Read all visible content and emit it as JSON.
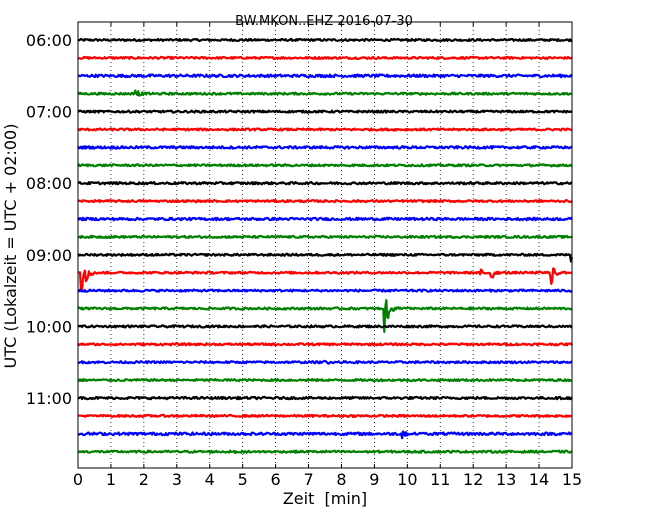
{
  "chart_data": {
    "type": "line",
    "title": "BW.MKON..EHZ 2016-07-30",
    "xlabel": "Zeit  [min]",
    "ylabel": "UTC (Lokalzeit = UTC + 02:00)",
    "xlim": [
      0,
      15
    ],
    "x_ticks": [
      "0",
      "1",
      "2",
      "3",
      "4",
      "5",
      "6",
      "7",
      "8",
      "9",
      "10",
      "11",
      "12",
      "13",
      "14",
      "15"
    ],
    "y_ticks": [
      "06:00",
      "07:00",
      "08:00",
      "09:00",
      "10:00",
      "11:00"
    ],
    "grid": "vertical dotted",
    "trace_colors": [
      "#000000",
      "#ff0000",
      "#0000ff",
      "#008000"
    ],
    "traces": [
      {
        "start": "06:00",
        "noise": 1.0,
        "events": []
      },
      {
        "start": "06:15",
        "noise": 1.0,
        "events": []
      },
      {
        "start": "06:30",
        "noise": 1.3,
        "events": []
      },
      {
        "start": "06:45",
        "noise": 1.0,
        "events": [
          {
            "t": 1.7,
            "amp": 6
          }
        ]
      },
      {
        "start": "07:00",
        "noise": 1.0,
        "events": []
      },
      {
        "start": "07:15",
        "noise": 1.0,
        "events": []
      },
      {
        "start": "07:30",
        "noise": 1.2,
        "events": []
      },
      {
        "start": "07:45",
        "noise": 1.0,
        "events": []
      },
      {
        "start": "08:00",
        "noise": 1.1,
        "events": []
      },
      {
        "start": "08:15",
        "noise": 1.0,
        "events": []
      },
      {
        "start": "08:30",
        "noise": 1.2,
        "events": []
      },
      {
        "start": "08:45",
        "noise": 1.0,
        "events": []
      },
      {
        "start": "09:00",
        "noise": 1.0,
        "events": [
          {
            "t": 14.95,
            "amp": 8
          }
        ]
      },
      {
        "start": "09:15",
        "noise": 1.0,
        "events": [
          {
            "t": 0.1,
            "amp": 28
          },
          {
            "t": 12.2,
            "amp": 5
          },
          {
            "t": 12.55,
            "amp": 8
          },
          {
            "t": 14.35,
            "amp": 14
          }
        ]
      },
      {
        "start": "09:30",
        "noise": 1.0,
        "events": []
      },
      {
        "start": "09:45",
        "noise": 1.0,
        "events": [
          {
            "t": 9.3,
            "amp": 26
          }
        ]
      },
      {
        "start": "10:00",
        "noise": 1.0,
        "events": []
      },
      {
        "start": "10:15",
        "noise": 1.0,
        "events": []
      },
      {
        "start": "10:30",
        "noise": 1.0,
        "events": [
          {
            "t": 7.5,
            "amp": 2
          }
        ]
      },
      {
        "start": "10:45",
        "noise": 1.0,
        "events": []
      },
      {
        "start": "11:00",
        "noise": 1.1,
        "events": []
      },
      {
        "start": "11:15",
        "noise": 1.0,
        "events": []
      },
      {
        "start": "11:30",
        "noise": 1.3,
        "events": [
          {
            "t": 9.85,
            "amp": 7
          }
        ]
      },
      {
        "start": "11:45",
        "noise": 1.0,
        "events": [
          {
            "t": 4.7,
            "amp": 2
          }
        ]
      }
    ]
  }
}
